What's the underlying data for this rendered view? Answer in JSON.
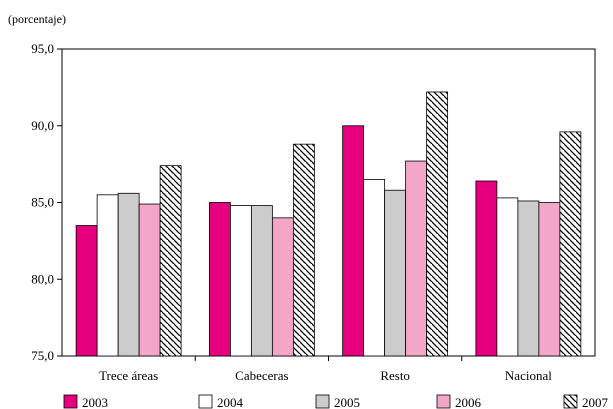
{
  "chart_data": {
    "type": "bar",
    "ylabel": "(porcentaje)",
    "ylim": [
      75,
      95
    ],
    "yticks": [
      "75,0",
      "80,0",
      "85,0",
      "90,0",
      "95,0"
    ],
    "ytick_values": [
      75,
      80,
      85,
      90,
      95
    ],
    "grid": false,
    "legend_position": "bottom",
    "categories": [
      "Trece áreas",
      "Cabeceras",
      "Resto",
      "Nacional"
    ],
    "series": [
      {
        "name": "2003",
        "color": "#e6007e",
        "pattern": "solid",
        "values": [
          83.5,
          85.0,
          90.0,
          86.4
        ]
      },
      {
        "name": "2004",
        "color": "#ffffff",
        "pattern": "solid",
        "values": [
          85.5,
          84.8,
          86.5,
          85.3
        ]
      },
      {
        "name": "2005",
        "color": "#cccccc",
        "pattern": "solid",
        "values": [
          85.6,
          84.8,
          85.8,
          85.1
        ]
      },
      {
        "name": "2006",
        "color": "#f4a6c8",
        "pattern": "solid",
        "values": [
          84.9,
          84.0,
          87.7,
          85.0
        ]
      },
      {
        "name": "2007",
        "color": "#ffffff",
        "pattern": "hatch",
        "values": [
          87.4,
          88.8,
          92.2,
          89.6
        ]
      }
    ]
  }
}
